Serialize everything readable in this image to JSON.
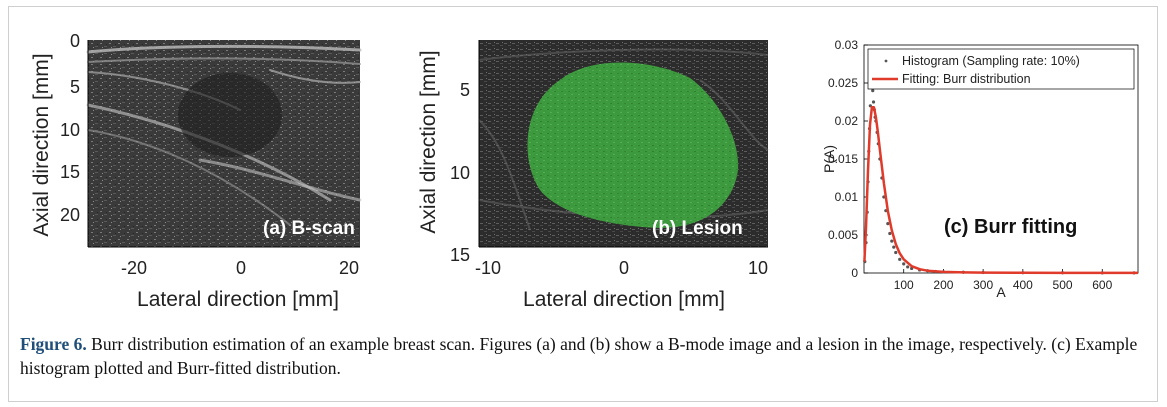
{
  "figure": {
    "caption_label": "Figure 6.",
    "caption_text": " Burr distribution estimation of an example breast scan. Figures (a) and (b) show a B-mode image and a lesion in the image, respectively. (c) Example histogram plotted and Burr-fitted distribution."
  },
  "panel_a": {
    "ylabel": "Axial direction [mm]",
    "xlabel": "Lateral direction [mm]",
    "xticks": [
      "-20",
      "0",
      "20"
    ],
    "yticks": [
      "0",
      "5",
      "10",
      "15",
      "20"
    ],
    "overlay_label": "(a) B-scan"
  },
  "panel_b": {
    "ylabel": "Axial direction [mm]",
    "xlabel": "Lateral direction [mm]",
    "xticks": [
      "-10",
      "0",
      "10"
    ],
    "yticks": [
      "5",
      "10",
      "15"
    ],
    "overlay_label": "(b) Lesion",
    "lesion_color": "#3fa33f"
  },
  "chart_data": {
    "type": "line",
    "title": "",
    "annotation": "(c) Burr fitting",
    "xlabel": "A",
    "ylabel": "P(A)",
    "xlim": [
      0,
      690
    ],
    "ylim": [
      0,
      0.03
    ],
    "xticks": [
      "100",
      "200",
      "300",
      "400",
      "500",
      "600"
    ],
    "xtick_values": [
      100,
      200,
      300,
      400,
      500,
      600
    ],
    "yticks": [
      "0",
      "0.005",
      "0.01",
      "0.015",
      "0.02",
      "0.025",
      "0.03"
    ],
    "ytick_values": [
      0,
      0.005,
      0.01,
      0.015,
      0.02,
      0.025,
      0.03
    ],
    "grid": false,
    "legend_position": "top-right",
    "series": [
      {
        "name": "Histogram (Sampling rate: 10%)",
        "kind": "scatter",
        "color": "#555555",
        "x": [
          2,
          5,
          8,
          10,
          12,
          14,
          16,
          18,
          20,
          22,
          24,
          26,
          28,
          30,
          33,
          36,
          40,
          45,
          50,
          55,
          60,
          65,
          70,
          75,
          80,
          90,
          100,
          110,
          120,
          140,
          160,
          180,
          200,
          250,
          300,
          400,
          500,
          600,
          680
        ],
        "y": [
          0.0015,
          0.004,
          0.008,
          0.012,
          0.016,
          0.019,
          0.022,
          0.0245,
          0.025,
          0.024,
          0.0225,
          0.0215,
          0.0205,
          0.02,
          0.0185,
          0.017,
          0.015,
          0.0125,
          0.01,
          0.0082,
          0.0065,
          0.0052,
          0.0042,
          0.0034,
          0.0027,
          0.0018,
          0.0012,
          0.0008,
          0.0006,
          0.0004,
          0.0003,
          0.0002,
          0.00015,
          0.0001,
          7e-05,
          4e-05,
          3e-05,
          2e-05,
          2e-05
        ]
      },
      {
        "name": "Fitting: Burr distribution",
        "kind": "line",
        "color": "#e03a2a",
        "x": [
          1,
          5,
          10,
          15,
          20,
          25,
          30,
          35,
          40,
          50,
          60,
          70,
          80,
          90,
          100,
          120,
          140,
          160,
          200,
          250,
          300,
          400,
          500,
          600,
          690
        ],
        "y": [
          0.0015,
          0.006,
          0.0135,
          0.0195,
          0.0218,
          0.0218,
          0.0205,
          0.0185,
          0.0162,
          0.0118,
          0.0082,
          0.0056,
          0.0038,
          0.0026,
          0.0018,
          0.0009,
          0.0005,
          0.0003,
          0.00015,
          8e-05,
          5e-05,
          2e-05,
          1e-05,
          1e-05,
          1e-05
        ]
      }
    ]
  }
}
